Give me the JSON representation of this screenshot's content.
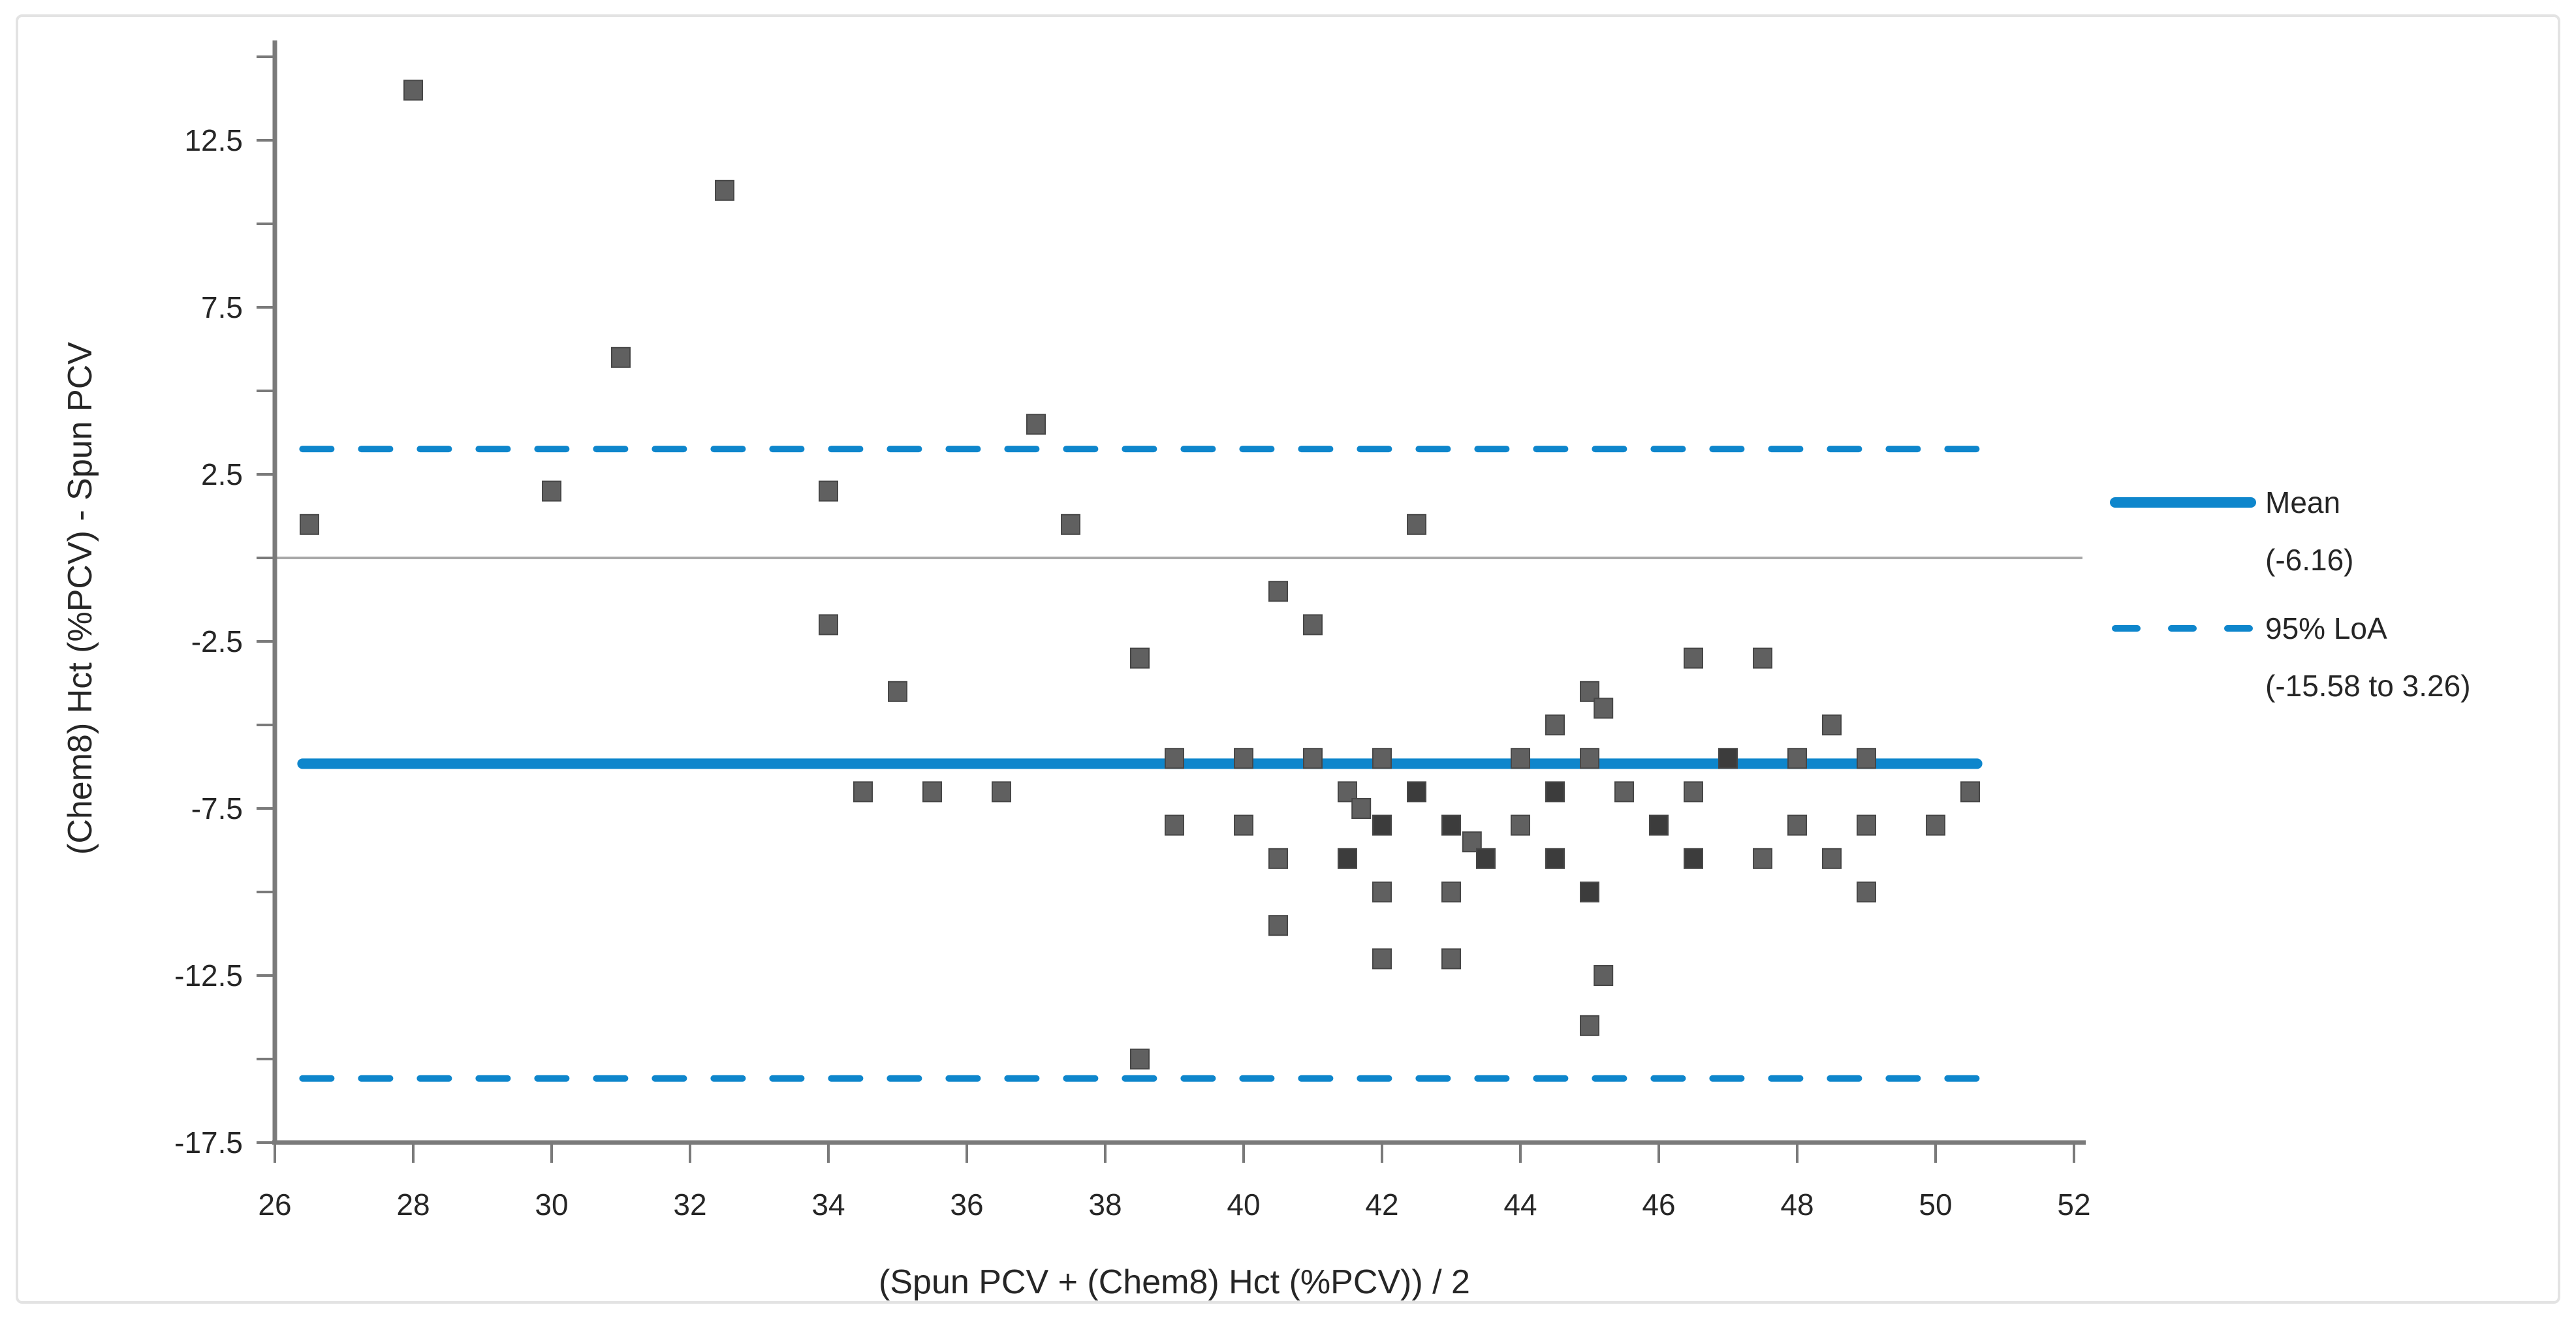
{
  "figure": {
    "background": "#ffffff",
    "border_color": "#e3e3e3"
  },
  "colors": {
    "accent_blue": "#0e86cc",
    "marker_gray": "#606060",
    "marker_dark": "#3c3c3c",
    "marker_border": "#474747",
    "axis_gray": "#7a7a7a",
    "zero_line_gray": "#a8a8a8",
    "text": "#262626"
  },
  "legend": {
    "mean_label": "Mean",
    "mean_value": "(-6.16)",
    "loa_label": "95% LoA",
    "loa_value": "(-15.58 to 3.26)"
  },
  "chart_data": {
    "type": "scatter",
    "title": "",
    "xlabel": "(Spun PCV + (Chem8) Hct (%PCV)) / 2",
    "ylabel": "(Chem8) Hct (%PCV) - Spun PCV",
    "xlim": [
      26,
      52
    ],
    "ylim": [
      -17.5,
      15
    ],
    "grid": false,
    "legend_position": "right",
    "x_ticks": [
      26,
      28,
      30,
      32,
      34,
      36,
      38,
      40,
      42,
      44,
      46,
      48,
      50,
      52
    ],
    "y_ticks": [
      15,
      12.5,
      10,
      7.5,
      5,
      2.5,
      0,
      -2.5,
      -5,
      -7.5,
      -10,
      -12.5,
      -15,
      -17.5
    ],
    "y_labeled_ticks": [
      12.5,
      7.5,
      2.5,
      -2.5,
      -7.5,
      -12.5,
      -17.5
    ],
    "mean": -6.16,
    "loa_upper": 3.26,
    "loa_lower": -15.58,
    "zero_line": 0,
    "line_x_start": 26.4,
    "line_x_end": 50.6,
    "points": [
      [
        26.5,
        1,
        0
      ],
      [
        28,
        14,
        0
      ],
      [
        30,
        2,
        0
      ],
      [
        31,
        6,
        0
      ],
      [
        32.5,
        11,
        0
      ],
      [
        34,
        2,
        0
      ],
      [
        34,
        -2,
        0
      ],
      [
        34.5,
        -7,
        0
      ],
      [
        35,
        -4,
        0
      ],
      [
        35.5,
        -7,
        0
      ],
      [
        36.5,
        -7,
        0
      ],
      [
        37,
        4,
        0
      ],
      [
        37.5,
        1,
        0
      ],
      [
        38.5,
        -3,
        0
      ],
      [
        38.5,
        -15,
        0
      ],
      [
        39,
        -6,
        0
      ],
      [
        39,
        -8,
        0
      ],
      [
        40,
        -6,
        0
      ],
      [
        40,
        -8,
        0
      ],
      [
        40.5,
        -1,
        0
      ],
      [
        40.5,
        -9,
        0
      ],
      [
        40.5,
        -11,
        0
      ],
      [
        41,
        -2,
        0
      ],
      [
        41,
        -6,
        0
      ],
      [
        41.5,
        -7,
        0
      ],
      [
        41.7,
        -7.5,
        0
      ],
      [
        41.5,
        -9,
        1
      ],
      [
        42,
        -6,
        0
      ],
      [
        42,
        -8,
        1
      ],
      [
        42,
        -10,
        0
      ],
      [
        42,
        -12,
        0
      ],
      [
        42.5,
        1,
        0
      ],
      [
        42.5,
        -7,
        1
      ],
      [
        43,
        -8,
        1
      ],
      [
        43,
        -10,
        0
      ],
      [
        43,
        -12,
        0
      ],
      [
        43.3,
        -8.5,
        0
      ],
      [
        43.5,
        -9,
        1
      ],
      [
        44,
        -6,
        0
      ],
      [
        44,
        -8,
        0
      ],
      [
        44.5,
        -5,
        0
      ],
      [
        44.5,
        -7,
        1
      ],
      [
        44.5,
        -9,
        1
      ],
      [
        45,
        -4,
        0
      ],
      [
        45.2,
        -4.5,
        0
      ],
      [
        45,
        -6,
        0
      ],
      [
        45,
        -10,
        1
      ],
      [
        45.2,
        -12.5,
        0
      ],
      [
        45,
        -14,
        0
      ],
      [
        45.5,
        -7,
        0
      ],
      [
        46,
        -8,
        1
      ],
      [
        46.5,
        -3,
        0
      ],
      [
        46.5,
        -7,
        0
      ],
      [
        46.5,
        -9,
        1
      ],
      [
        47,
        -6,
        1
      ],
      [
        47.5,
        -3,
        0
      ],
      [
        47.5,
        -9,
        0
      ],
      [
        48,
        -6,
        0
      ],
      [
        48,
        -8,
        0
      ],
      [
        48.5,
        -5,
        0
      ],
      [
        48.5,
        -9,
        0
      ],
      [
        49,
        -6,
        0
      ],
      [
        49,
        -8,
        0
      ],
      [
        49,
        -10,
        0
      ],
      [
        50,
        -8,
        0
      ],
      [
        50.5,
        -7,
        0
      ]
    ]
  }
}
